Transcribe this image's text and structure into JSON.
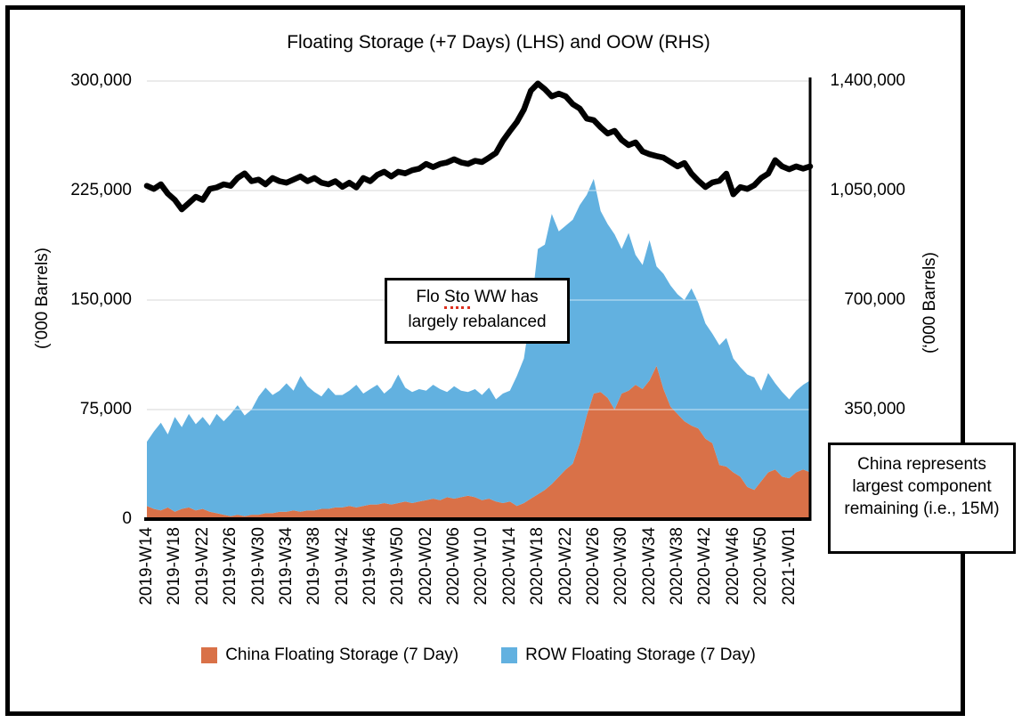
{
  "title": "Floating Storage (+7 Days) (LHS) and OOW (RHS)",
  "left_axis": {
    "title": "(‘000 Barrels)",
    "ticks": [
      "300,000",
      "225,000",
      "150,000",
      "75,000",
      "0"
    ]
  },
  "right_axis": {
    "title": "(‘000 Barrels)",
    "ticks": [
      "1,400,000",
      "1,050,000",
      "700,000",
      "350,000"
    ]
  },
  "legend": [
    {
      "label": "China Floating Storage (7 Day)",
      "color": "#D97148"
    },
    {
      "label": "ROW Floating Storage (7 Day)",
      "color": "#62B1E0"
    }
  ],
  "annotations": {
    "flo_sto": {
      "pre": "Flo ",
      "underlined": "Sto",
      "post": " WW has",
      "line2": "largely rebalanced"
    },
    "china_note": "China represents largest component remaining (i.e., 15M)"
  },
  "chart_data": {
    "type": "combo-stacked-area-line",
    "title": "Floating Storage (+7 Days) (LHS) and OOW (RHS)",
    "x_tick_labels": [
      "2019-W14",
      "2019-W18",
      "2019-W22",
      "2019-W26",
      "2019-W30",
      "2019-W34",
      "2019-W38",
      "2019-W42",
      "2019-W46",
      "2019-W50",
      "2020-W02",
      "2020-W06",
      "2020-W10",
      "2020-W14",
      "2020-W18",
      "2020-W22",
      "2020-W26",
      "2020-W30",
      "2020-W34",
      "2020-W38",
      "2020-W42",
      "2020-W46",
      "2020-W50",
      "2021-W01"
    ],
    "x_tick_step": 4,
    "left_axis_range": [
      0,
      300000
    ],
    "right_axis_range": [
      0,
      1400000
    ],
    "grid": true,
    "legend_position": "bottom",
    "series": [
      {
        "name": "China Floating Storage (7 Day)",
        "type": "area",
        "stack": true,
        "axis": "left",
        "color": "#D97148",
        "values": [
          9000,
          7000,
          6000,
          8000,
          5000,
          7000,
          8000,
          6000,
          7000,
          5000,
          4000,
          3000,
          2000,
          3000,
          2000,
          3000,
          3000,
          4000,
          4000,
          5000,
          5000,
          6000,
          5000,
          6000,
          6000,
          7000,
          7000,
          8000,
          8000,
          9000,
          8000,
          9000,
          10000,
          10000,
          11000,
          10000,
          11000,
          12000,
          11000,
          12000,
          13000,
          14000,
          13000,
          15000,
          14000,
          15000,
          16000,
          15000,
          13000,
          14000,
          12000,
          11000,
          12000,
          9000,
          11000,
          14000,
          17000,
          20000,
          24000,
          29000,
          34000,
          38000,
          52000,
          71000,
          86000,
          87000,
          83000,
          75000,
          86000,
          88000,
          92000,
          89000,
          95000,
          105000,
          89000,
          77000,
          72000,
          67000,
          64000,
          62000,
          55000,
          52000,
          37000,
          36000,
          32000,
          29000,
          22000,
          20000,
          26000,
          32000,
          34000,
          29000,
          28000,
          32000,
          34000,
          32000
        ]
      },
      {
        "name": "ROW Floating Storage (7 Day)",
        "type": "area",
        "stack": true,
        "axis": "left",
        "color": "#62B1E0",
        "values": [
          44000,
          53000,
          60000,
          50000,
          65000,
          56000,
          64000,
          59000,
          63000,
          59000,
          68000,
          64000,
          70000,
          75000,
          69000,
          72000,
          81000,
          86000,
          81000,
          83000,
          88000,
          82000,
          93000,
          85000,
          81000,
          77000,
          83000,
          77000,
          77000,
          79000,
          84000,
          77000,
          79000,
          82000,
          75000,
          80000,
          88000,
          78000,
          76000,
          77000,
          75000,
          78000,
          76000,
          72000,
          77000,
          73000,
          71000,
          74000,
          72000,
          76000,
          70000,
          75000,
          76000,
          89000,
          99000,
          128000,
          168000,
          168000,
          185000,
          168000,
          167000,
          167000,
          163000,
          151000,
          147000,
          124000,
          119000,
          120000,
          99000,
          108000,
          89000,
          85000,
          96000,
          68000,
          79000,
          83000,
          82000,
          83000,
          94000,
          86000,
          79000,
          75000,
          82000,
          88000,
          78000,
          75000,
          77000,
          77000,
          62000,
          68000,
          59000,
          58000,
          54000,
          56000,
          58000,
          63000
        ]
      },
      {
        "name": "OOW",
        "type": "line",
        "axis": "right",
        "color": "#000000",
        "values": [
          1065000,
          1055000,
          1070000,
          1040000,
          1020000,
          990000,
          1010000,
          1030000,
          1020000,
          1055000,
          1060000,
          1070000,
          1065000,
          1090000,
          1105000,
          1080000,
          1085000,
          1070000,
          1090000,
          1080000,
          1075000,
          1085000,
          1095000,
          1080000,
          1090000,
          1075000,
          1070000,
          1080000,
          1062000,
          1075000,
          1060000,
          1090000,
          1080000,
          1100000,
          1110000,
          1095000,
          1110000,
          1105000,
          1115000,
          1120000,
          1135000,
          1125000,
          1135000,
          1140000,
          1150000,
          1140000,
          1135000,
          1145000,
          1141000,
          1155000,
          1170000,
          1209000,
          1240000,
          1269000,
          1309000,
          1369000,
          1392000,
          1374000,
          1351000,
          1360000,
          1351000,
          1326000,
          1312000,
          1280000,
          1275000,
          1252000,
          1232000,
          1241000,
          1212000,
          1195000,
          1204000,
          1175000,
          1166000,
          1160000,
          1155000,
          1141000,
          1127000,
          1138000,
          1104000,
          1081000,
          1061000,
          1076000,
          1081000,
          1104000,
          1038000,
          1061000,
          1055000,
          1067000,
          1090000,
          1104000,
          1147000,
          1127000,
          1118000,
          1127000,
          1120000,
          1127000
        ]
      }
    ]
  }
}
